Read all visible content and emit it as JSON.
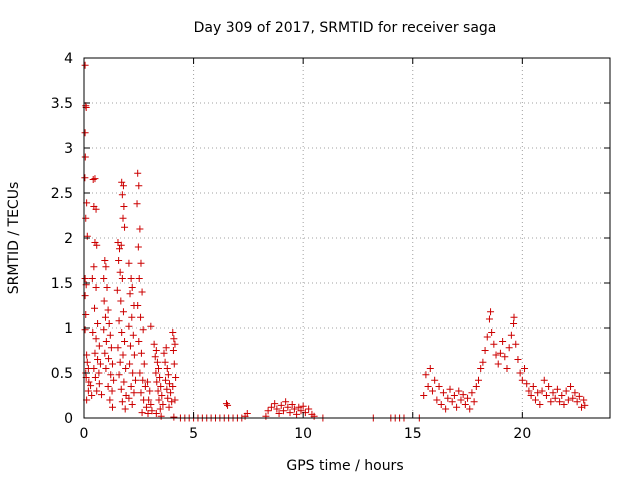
{
  "chart_data": {
    "type": "scatter",
    "title": "Day 309 of 2017, SRMTID for receiver saga",
    "xlabel": "GPS time / hours",
    "ylabel": "SRMTID / TECUs",
    "xlim": [
      0,
      24
    ],
    "ylim": [
      0,
      4
    ],
    "xticks": [
      0,
      5,
      10,
      15,
      20
    ],
    "xtick_labels": [
      "0",
      "5",
      "10",
      "15",
      "20"
    ],
    "yticks": [
      0,
      0.5,
      1,
      1.5,
      2,
      2.5,
      3,
      3.5,
      4
    ],
    "ytick_labels": [
      "0",
      "0.5",
      "1",
      "1.5",
      "2",
      "2.5",
      "3",
      "3.5",
      "4"
    ],
    "grid": true,
    "marker": "plus",
    "color": "#cc0000",
    "series": [
      {
        "name": "saga",
        "points": [
          [
            0.05,
            3.92
          ],
          [
            0.08,
            3.47
          ],
          [
            0.1,
            3.45
          ],
          [
            0.05,
            3.17
          ],
          [
            0.06,
            2.9
          ],
          [
            0.04,
            2.67
          ],
          [
            0.12,
            2.39
          ],
          [
            0.08,
            2.22
          ],
          [
            0.15,
            2.02
          ],
          [
            0.05,
            1.55
          ],
          [
            0.1,
            1.48
          ],
          [
            0.05,
            1.36
          ],
          [
            0.08,
            1.15
          ],
          [
            0.05,
            0.98
          ],
          [
            0.12,
            0.7
          ],
          [
            0.15,
            0.62
          ],
          [
            0.2,
            0.55
          ],
          [
            0.08,
            0.5
          ],
          [
            0.1,
            0.45
          ],
          [
            0.22,
            0.4
          ],
          [
            0.3,
            0.36
          ],
          [
            0.2,
            0.3
          ],
          [
            0.35,
            0.25
          ],
          [
            0.12,
            0.2
          ],
          [
            0.42,
            2.65
          ],
          [
            0.5,
            2.66
          ],
          [
            0.55,
            2.32
          ],
          [
            0.45,
            2.35
          ],
          [
            0.5,
            1.95
          ],
          [
            0.58,
            1.92
          ],
          [
            0.45,
            1.68
          ],
          [
            0.38,
            1.55
          ],
          [
            0.55,
            1.45
          ],
          [
            0.48,
            1.22
          ],
          [
            0.62,
            1.05
          ],
          [
            0.4,
            0.95
          ],
          [
            0.55,
            0.88
          ],
          [
            0.7,
            0.8
          ],
          [
            0.5,
            0.72
          ],
          [
            0.62,
            0.65
          ],
          [
            0.75,
            0.6
          ],
          [
            0.45,
            0.55
          ],
          [
            0.68,
            0.5
          ],
          [
            0.52,
            0.45
          ],
          [
            0.7,
            0.38
          ],
          [
            0.58,
            0.3
          ],
          [
            0.8,
            0.26
          ],
          [
            0.95,
            1.75
          ],
          [
            1.0,
            1.68
          ],
          [
            0.9,
            1.55
          ],
          [
            1.05,
            1.45
          ],
          [
            0.92,
            1.3
          ],
          [
            1.1,
            1.2
          ],
          [
            0.98,
            1.12
          ],
          [
            1.15,
            1.05
          ],
          [
            0.9,
            0.98
          ],
          [
            1.2,
            0.92
          ],
          [
            1.02,
            0.85
          ],
          [
            1.25,
            0.78
          ],
          [
            0.95,
            0.72
          ],
          [
            1.12,
            0.66
          ],
          [
            1.3,
            0.6
          ],
          [
            1.0,
            0.55
          ],
          [
            1.22,
            0.48
          ],
          [
            1.35,
            0.42
          ],
          [
            1.1,
            0.35
          ],
          [
            1.28,
            0.3
          ],
          [
            1.18,
            0.2
          ],
          [
            1.3,
            0.12
          ],
          [
            1.55,
            1.95
          ],
          [
            1.62,
            1.88
          ],
          [
            1.7,
            1.92
          ],
          [
            1.58,
            1.75
          ],
          [
            1.65,
            1.62
          ],
          [
            1.75,
            1.55
          ],
          [
            1.52,
            1.42
          ],
          [
            1.68,
            1.3
          ],
          [
            1.8,
            1.18
          ],
          [
            1.6,
            1.08
          ],
          [
            1.72,
            0.95
          ],
          [
            1.85,
            0.85
          ],
          [
            1.55,
            0.78
          ],
          [
            1.78,
            0.7
          ],
          [
            1.65,
            0.62
          ],
          [
            1.9,
            0.55
          ],
          [
            1.6,
            0.48
          ],
          [
            1.82,
            0.4
          ],
          [
            1.7,
            0.32
          ],
          [
            1.92,
            0.25
          ],
          [
            1.75,
            0.18
          ],
          [
            1.88,
            0.1
          ],
          [
            1.72,
            2.62
          ],
          [
            1.8,
            2.58
          ],
          [
            1.75,
            2.48
          ],
          [
            1.82,
            2.35
          ],
          [
            1.78,
            2.22
          ],
          [
            1.85,
            2.12
          ],
          [
            2.05,
            1.72
          ],
          [
            2.15,
            1.55
          ],
          [
            2.2,
            1.45
          ],
          [
            2.1,
            1.38
          ],
          [
            2.28,
            1.25
          ],
          [
            2.18,
            1.12
          ],
          [
            2.05,
            1.02
          ],
          [
            2.25,
            0.92
          ],
          [
            2.12,
            0.8
          ],
          [
            2.3,
            0.7
          ],
          [
            2.08,
            0.6
          ],
          [
            2.22,
            0.5
          ],
          [
            2.35,
            0.42
          ],
          [
            2.15,
            0.35
          ],
          [
            2.28,
            0.28
          ],
          [
            2.05,
            0.22
          ],
          [
            2.2,
            0.15
          ],
          [
            2.45,
            2.72
          ],
          [
            2.5,
            2.58
          ],
          [
            2.42,
            2.38
          ],
          [
            2.55,
            2.1
          ],
          [
            2.48,
            1.9
          ],
          [
            2.6,
            1.72
          ],
          [
            2.52,
            1.55
          ],
          [
            2.65,
            1.4
          ],
          [
            2.45,
            1.25
          ],
          [
            2.58,
            1.12
          ],
          [
            2.7,
            0.98
          ],
          [
            2.5,
            0.85
          ],
          [
            2.62,
            0.72
          ],
          [
            2.75,
            0.6
          ],
          [
            2.55,
            0.5
          ],
          [
            2.68,
            0.42
          ],
          [
            2.8,
            0.35
          ],
          [
            2.6,
            0.28
          ],
          [
            2.72,
            0.2
          ],
          [
            2.85,
            0.12
          ],
          [
            2.65,
            0.06
          ],
          [
            2.9,
            0.4
          ],
          [
            3.0,
            0.3
          ],
          [
            2.95,
            0.2
          ],
          [
            3.05,
            0.15
          ],
          [
            3.1,
            0.08
          ],
          [
            2.92,
            0.05
          ],
          [
            3.05,
            1.02
          ],
          [
            3.2,
            0.82
          ],
          [
            3.3,
            0.75
          ],
          [
            3.25,
            0.68
          ],
          [
            3.35,
            0.62
          ],
          [
            3.4,
            0.55
          ],
          [
            3.28,
            0.5
          ],
          [
            3.45,
            0.45
          ],
          [
            3.32,
            0.4
          ],
          [
            3.5,
            0.35
          ],
          [
            3.38,
            0.3
          ],
          [
            3.55,
            0.25
          ],
          [
            3.42,
            0.2
          ],
          [
            3.6,
            0.15
          ],
          [
            3.48,
            0.1
          ],
          [
            3.3,
            0.05
          ],
          [
            3.52,
            0.02
          ],
          [
            3.65,
            0.72
          ],
          [
            3.75,
            0.78
          ],
          [
            3.7,
            0.62
          ],
          [
            3.8,
            0.55
          ],
          [
            3.85,
            0.48
          ],
          [
            3.72,
            0.42
          ],
          [
            3.9,
            0.38
          ],
          [
            3.78,
            0.32
          ],
          [
            3.95,
            0.28
          ],
          [
            3.82,
            0.22
          ],
          [
            4.0,
            0.18
          ],
          [
            3.88,
            0.12
          ],
          [
            4.05,
            0.95
          ],
          [
            4.1,
            0.88
          ],
          [
            4.15,
            0.82
          ],
          [
            4.08,
            0.75
          ],
          [
            4.12,
            0.6
          ],
          [
            4.18,
            0.45
          ],
          [
            4.05,
            0.35
          ],
          [
            4.15,
            0.2
          ],
          [
            4.1,
            0.01
          ],
          [
            4.4,
            0.0
          ],
          [
            4.6,
            0.0
          ],
          [
            4.8,
            0.0
          ],
          [
            5.0,
            0.0
          ],
          [
            5.2,
            0.0
          ],
          [
            5.4,
            0.0
          ],
          [
            5.6,
            0.0
          ],
          [
            5.8,
            0.0
          ],
          [
            6.0,
            0.0
          ],
          [
            6.2,
            0.0
          ],
          [
            6.4,
            0.0
          ],
          [
            6.5,
            0.16
          ],
          [
            6.55,
            0.14
          ],
          [
            6.6,
            0.0
          ],
          [
            6.8,
            0.0
          ],
          [
            7.0,
            0.0
          ],
          [
            7.2,
            0.0
          ],
          [
            7.35,
            0.02
          ],
          [
            7.45,
            0.05
          ],
          [
            8.3,
            0.02
          ],
          [
            8.4,
            0.08
          ],
          [
            8.55,
            0.12
          ],
          [
            8.7,
            0.16
          ],
          [
            8.8,
            0.1
          ],
          [
            8.9,
            0.05
          ],
          [
            9.0,
            0.14
          ],
          [
            9.1,
            0.08
          ],
          [
            9.2,
            0.18
          ],
          [
            9.3,
            0.12
          ],
          [
            9.4,
            0.06
          ],
          [
            9.5,
            0.15
          ],
          [
            9.6,
            0.1
          ],
          [
            9.7,
            0.04
          ],
          [
            9.8,
            0.12
          ],
          [
            9.9,
            0.08
          ],
          [
            10.0,
            0.13
          ],
          [
            10.1,
            0.06
          ],
          [
            10.25,
            0.1
          ],
          [
            10.4,
            0.04
          ],
          [
            10.5,
            0.02
          ],
          [
            10.9,
            0.0
          ],
          [
            13.2,
            0.0
          ],
          [
            14.0,
            0.0
          ],
          [
            14.2,
            0.0
          ],
          [
            14.4,
            0.0
          ],
          [
            14.6,
            0.0
          ],
          [
            15.3,
            0.0
          ],
          [
            15.5,
            0.25
          ],
          [
            15.6,
            0.48
          ],
          [
            15.7,
            0.35
          ],
          [
            15.8,
            0.55
          ],
          [
            15.9,
            0.3
          ],
          [
            16.0,
            0.42
          ],
          [
            16.1,
            0.2
          ],
          [
            16.2,
            0.35
          ],
          [
            16.3,
            0.15
          ],
          [
            16.4,
            0.28
          ],
          [
            16.5,
            0.1
          ],
          [
            16.6,
            0.22
          ],
          [
            16.7,
            0.32
          ],
          [
            16.8,
            0.18
          ],
          [
            16.9,
            0.25
          ],
          [
            17.0,
            0.12
          ],
          [
            17.1,
            0.3
          ],
          [
            17.2,
            0.2
          ],
          [
            17.3,
            0.26
          ],
          [
            17.4,
            0.15
          ],
          [
            17.5,
            0.22
          ],
          [
            17.6,
            0.1
          ],
          [
            17.7,
            0.28
          ],
          [
            17.8,
            0.18
          ],
          [
            17.9,
            0.35
          ],
          [
            18.0,
            0.42
          ],
          [
            18.1,
            0.55
          ],
          [
            18.2,
            0.62
          ],
          [
            18.3,
            0.75
          ],
          [
            18.4,
            0.9
          ],
          [
            18.5,
            1.1
          ],
          [
            18.55,
            1.18
          ],
          [
            18.6,
            0.95
          ],
          [
            18.7,
            0.82
          ],
          [
            18.8,
            0.7
          ],
          [
            18.9,
            0.6
          ],
          [
            19.0,
            0.72
          ],
          [
            19.1,
            0.85
          ],
          [
            19.2,
            0.68
          ],
          [
            19.3,
            0.55
          ],
          [
            19.4,
            0.78
          ],
          [
            19.5,
            0.92
          ],
          [
            19.6,
            1.05
          ],
          [
            19.62,
            1.12
          ],
          [
            19.7,
            0.82
          ],
          [
            19.8,
            0.65
          ],
          [
            19.9,
            0.5
          ],
          [
            20.0,
            0.42
          ],
          [
            20.1,
            0.55
          ],
          [
            20.2,
            0.38
          ],
          [
            20.3,
            0.3
          ],
          [
            20.4,
            0.25
          ],
          [
            20.5,
            0.35
          ],
          [
            20.6,
            0.2
          ],
          [
            20.7,
            0.28
          ],
          [
            20.8,
            0.15
          ],
          [
            20.9,
            0.3
          ],
          [
            21.0,
            0.42
          ],
          [
            21.1,
            0.25
          ],
          [
            21.2,
            0.35
          ],
          [
            21.3,
            0.18
          ],
          [
            21.4,
            0.28
          ],
          [
            21.5,
            0.22
          ],
          [
            21.6,
            0.32
          ],
          [
            21.7,
            0.18
          ],
          [
            21.8,
            0.25
          ],
          [
            21.9,
            0.15
          ],
          [
            22.0,
            0.3
          ],
          [
            22.1,
            0.2
          ],
          [
            22.2,
            0.35
          ],
          [
            22.3,
            0.22
          ],
          [
            22.4,
            0.28
          ],
          [
            22.5,
            0.18
          ],
          [
            22.6,
            0.24
          ],
          [
            22.7,
            0.12
          ],
          [
            22.8,
            0.2
          ],
          [
            22.85,
            0.14
          ]
        ]
      }
    ]
  }
}
